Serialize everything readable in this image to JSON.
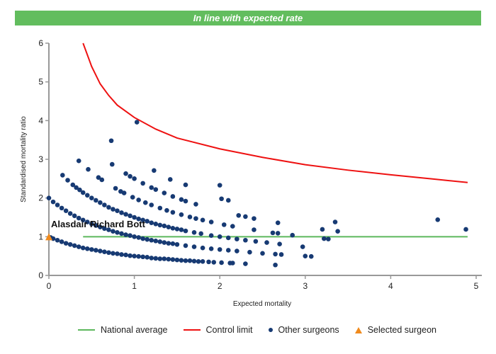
{
  "banner": {
    "text": "In line with expected rate",
    "color": "#62bd5e"
  },
  "chart_data": {
    "type": "scatter",
    "xlabel": "Expected mortality",
    "ylabel": "Standardised mortality ratio",
    "xlim": [
      0,
      5
    ],
    "ylim": [
      0,
      6
    ],
    "xticks": [
      "0",
      "1",
      "2",
      "3",
      "4",
      "5"
    ],
    "yticks": [
      "0",
      "1",
      "2",
      "3",
      "4",
      "5",
      "6"
    ],
    "grid": false,
    "legend_position": "bottom",
    "annotation": "Alasdair Richard Bott",
    "series": [
      {
        "name": "National average",
        "kind": "line",
        "color": "#5cb85c",
        "points": [
          [
            0.4,
            1
          ],
          [
            4.9,
            1
          ]
        ]
      },
      {
        "name": "Control limit",
        "kind": "line",
        "color": "#ee1111",
        "points": [
          [
            0.4,
            6.0
          ],
          [
            0.5,
            5.4
          ],
          [
            0.6,
            4.95
          ],
          [
            0.7,
            4.65
          ],
          [
            0.8,
            4.4
          ],
          [
            1,
            4.08
          ],
          [
            1.25,
            3.78
          ],
          [
            1.5,
            3.55
          ],
          [
            2,
            3.27
          ],
          [
            2.5,
            3.05
          ],
          [
            3,
            2.86
          ],
          [
            3.5,
            2.72
          ],
          [
            4,
            2.6
          ],
          [
            4.5,
            2.49
          ],
          [
            4.9,
            2.4
          ]
        ]
      },
      {
        "name": "Other surgeons",
        "kind": "scatter",
        "color": "#173a73",
        "points": [
          [
            0.02,
            0.98
          ],
          [
            0.05,
            0.95
          ],
          [
            0.1,
            0.91
          ],
          [
            0.15,
            0.87
          ],
          [
            0.2,
            0.83
          ],
          [
            0.25,
            0.8
          ],
          [
            0.3,
            0.77
          ],
          [
            0.35,
            0.74
          ],
          [
            0.4,
            0.71
          ],
          [
            0.45,
            0.69
          ],
          [
            0.5,
            0.67
          ],
          [
            0.55,
            0.65
          ],
          [
            0.6,
            0.63
          ],
          [
            0.65,
            0.61
          ],
          [
            0.7,
            0.59
          ],
          [
            0.75,
            0.57
          ],
          [
            0.8,
            0.56
          ],
          [
            0.85,
            0.54
          ],
          [
            0.9,
            0.53
          ],
          [
            0.95,
            0.51
          ],
          [
            1.0,
            0.5
          ],
          [
            1.05,
            0.49
          ],
          [
            1.1,
            0.48
          ],
          [
            1.15,
            0.47
          ],
          [
            1.2,
            0.45
          ],
          [
            1.25,
            0.44
          ],
          [
            1.3,
            0.43
          ],
          [
            1.35,
            0.43
          ],
          [
            1.4,
            0.42
          ],
          [
            1.45,
            0.41
          ],
          [
            1.5,
            0.4
          ],
          [
            1.55,
            0.39
          ],
          [
            1.6,
            0.38
          ],
          [
            1.65,
            0.38
          ],
          [
            1.7,
            0.37
          ],
          [
            1.75,
            0.36
          ],
          [
            1.8,
            0.36
          ],
          [
            1.87,
            0.35
          ],
          [
            1.93,
            0.34
          ],
          [
            2.02,
            0.33
          ],
          [
            2.12,
            0.32
          ],
          [
            2.15,
            0.32
          ],
          [
            2.3,
            0.3
          ],
          [
            2.65,
            0.27
          ],
          [
            0,
            2.0
          ],
          [
            0.05,
            1.9
          ],
          [
            0.1,
            1.82
          ],
          [
            0.15,
            1.74
          ],
          [
            0.2,
            1.67
          ],
          [
            0.25,
            1.6
          ],
          [
            0.3,
            1.54
          ],
          [
            0.35,
            1.48
          ],
          [
            0.4,
            1.43
          ],
          [
            0.45,
            1.38
          ],
          [
            0.5,
            1.33
          ],
          [
            0.55,
            1.29
          ],
          [
            0.6,
            1.25
          ],
          [
            0.65,
            1.21
          ],
          [
            0.7,
            1.18
          ],
          [
            0.75,
            1.14
          ],
          [
            0.8,
            1.11
          ],
          [
            0.85,
            1.08
          ],
          [
            0.9,
            1.05
          ],
          [
            0.95,
            1.03
          ],
          [
            1.0,
            1.0
          ],
          [
            1.05,
            0.98
          ],
          [
            1.1,
            0.95
          ],
          [
            1.15,
            0.93
          ],
          [
            1.2,
            0.91
          ],
          [
            1.25,
            0.89
          ],
          [
            1.3,
            0.87
          ],
          [
            1.35,
            0.85
          ],
          [
            1.4,
            0.83
          ],
          [
            1.45,
            0.82
          ],
          [
            1.5,
            0.8
          ],
          [
            1.6,
            0.77
          ],
          [
            1.7,
            0.74
          ],
          [
            1.8,
            0.71
          ],
          [
            1.9,
            0.69
          ],
          [
            2.0,
            0.67
          ],
          [
            2.1,
            0.65
          ],
          [
            2.2,
            0.63
          ],
          [
            2.35,
            0.6
          ],
          [
            2.5,
            0.57
          ],
          [
            2.65,
            0.55
          ],
          [
            2.72,
            0.54
          ],
          [
            3.0,
            0.5
          ],
          [
            3.07,
            0.49
          ],
          [
            0.16,
            2.59
          ],
          [
            0.22,
            2.46
          ],
          [
            0.28,
            2.34
          ],
          [
            0.32,
            2.27
          ],
          [
            0.36,
            2.21
          ],
          [
            0.4,
            2.14
          ],
          [
            0.45,
            2.07
          ],
          [
            0.5,
            2.0
          ],
          [
            0.55,
            1.94
          ],
          [
            0.6,
            1.88
          ],
          [
            0.65,
            1.82
          ],
          [
            0.7,
            1.76
          ],
          [
            0.75,
            1.71
          ],
          [
            0.8,
            1.67
          ],
          [
            0.85,
            1.62
          ],
          [
            0.9,
            1.58
          ],
          [
            0.95,
            1.54
          ],
          [
            1.0,
            1.5
          ],
          [
            1.05,
            1.46
          ],
          [
            1.1,
            1.43
          ],
          [
            1.15,
            1.4
          ],
          [
            1.2,
            1.36
          ],
          [
            1.25,
            1.33
          ],
          [
            1.3,
            1.3
          ],
          [
            1.35,
            1.28
          ],
          [
            1.4,
            1.25
          ],
          [
            1.45,
            1.22
          ],
          [
            1.5,
            1.2
          ],
          [
            1.55,
            1.18
          ],
          [
            1.6,
            1.15
          ],
          [
            1.7,
            1.11
          ],
          [
            1.78,
            1.08
          ],
          [
            1.9,
            1.03
          ],
          [
            2.0,
            1.0
          ],
          [
            2.1,
            0.97
          ],
          [
            2.2,
            0.94
          ],
          [
            2.3,
            0.91
          ],
          [
            2.42,
            0.88
          ],
          [
            2.55,
            0.85
          ],
          [
            2.7,
            0.81
          ],
          [
            2.97,
            0.74
          ],
          [
            0.35,
            2.96
          ],
          [
            0.46,
            2.74
          ],
          [
            0.58,
            2.53
          ],
          [
            0.62,
            2.47
          ],
          [
            0.78,
            2.25
          ],
          [
            0.84,
            2.17
          ],
          [
            0.88,
            2.13
          ],
          [
            0.98,
            2.02
          ],
          [
            1.05,
            1.95
          ],
          [
            1.13,
            1.88
          ],
          [
            1.2,
            1.82
          ],
          [
            1.3,
            1.74
          ],
          [
            1.38,
            1.68
          ],
          [
            1.45,
            1.63
          ],
          [
            1.55,
            1.57
          ],
          [
            1.65,
            1.51
          ],
          [
            1.72,
            1.47
          ],
          [
            1.8,
            1.43
          ],
          [
            1.9,
            1.38
          ],
          [
            2.05,
            1.31
          ],
          [
            2.15,
            1.27
          ],
          [
            2.4,
            1.18
          ],
          [
            2.62,
            1.1
          ],
          [
            2.68,
            1.09
          ],
          [
            2.85,
            1.04
          ],
          [
            3.22,
            0.95
          ],
          [
            3.27,
            0.94
          ],
          [
            0.74,
            2.87
          ],
          [
            0.9,
            2.63
          ],
          [
            0.95,
            2.56
          ],
          [
            1.0,
            2.5
          ],
          [
            1.1,
            2.38
          ],
          [
            1.2,
            2.27
          ],
          [
            1.25,
            2.22
          ],
          [
            1.35,
            2.13
          ],
          [
            1.45,
            2.04
          ],
          [
            1.55,
            1.96
          ],
          [
            1.6,
            1.92
          ],
          [
            1.72,
            1.84
          ],
          [
            2.22,
            1.55
          ],
          [
            2.3,
            1.52
          ],
          [
            2.4,
            1.47
          ],
          [
            2.68,
            1.36
          ],
          [
            3.2,
            1.19
          ],
          [
            3.38,
            1.14
          ],
          [
            0.73,
            3.48
          ],
          [
            1.03,
            3.96
          ],
          [
            1.23,
            2.71
          ],
          [
            1.42,
            2.48
          ],
          [
            1.6,
            2.34
          ],
          [
            2.0,
            2.33
          ],
          [
            2.02,
            1.98
          ],
          [
            2.1,
            1.94
          ],
          [
            3.35,
            1.38
          ],
          [
            4.55,
            1.44
          ],
          [
            4.88,
            1.19
          ]
        ]
      },
      {
        "name": "Selected surgeon",
        "kind": "scatter",
        "marker": "triangle",
        "color": "#f08a1c",
        "points": [
          [
            0,
            1
          ]
        ]
      }
    ]
  }
}
